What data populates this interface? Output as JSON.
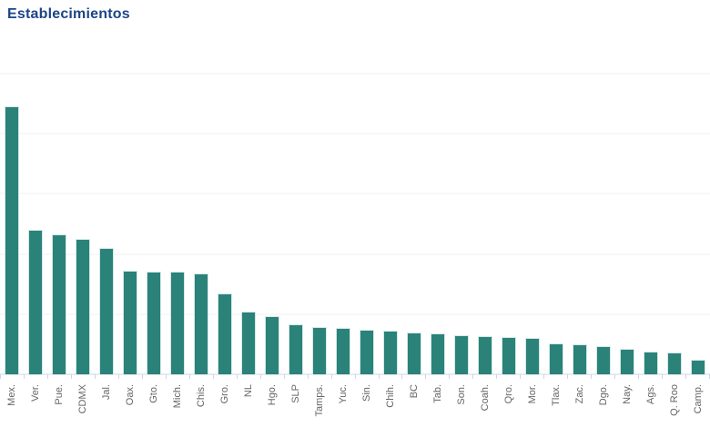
{
  "chart_data": {
    "type": "bar",
    "title": "Establecimientos",
    "xlabel": "",
    "ylabel": "",
    "y_tick_labels": [],
    "y_axis_note": "no y-axis tick labels visible; values estimated from gridlines as bar-height pixels (plot height 331px, gridline every 66px)",
    "categories": [
      "Mex.",
      "Ver.",
      "Pue.",
      "CDMX",
      "Jal.",
      "Oax.",
      "Gto.",
      "Mich.",
      "Chis.",
      "Gro.",
      "NL",
      "Hgo.",
      "SLP",
      "Tamps.",
      "Yuc.",
      "Sin.",
      "Chih.",
      "BC",
      "Tab.",
      "Son.",
      "Coah.",
      "Qro.",
      "Mor.",
      "Tlax.",
      "Zac.",
      "Dgo.",
      "Nay.",
      "Ags.",
      "Q. Roo",
      "Camp."
    ],
    "values": [
      295,
      159,
      154,
      149,
      139,
      114,
      113,
      113,
      111,
      89,
      69,
      64,
      55,
      52,
      51,
      49,
      48,
      46,
      45,
      43,
      42,
      41,
      40,
      34,
      33,
      31,
      28,
      25,
      24,
      16
    ],
    "ylim": [
      0,
      331
    ],
    "grid": "horizontal",
    "gridline_divisions": 5,
    "legend_position": "none",
    "x_label_rotation_deg": -90,
    "colors": {
      "bar": "#2a8279",
      "bar_border": "#d2e9e6",
      "gridline": "#f0f0f0",
      "axis_line": "#ccd6eb",
      "tick": "#ccd6eb",
      "label_text": "#666666",
      "title_text": "#1c4587",
      "background": "#ffffff"
    }
  }
}
